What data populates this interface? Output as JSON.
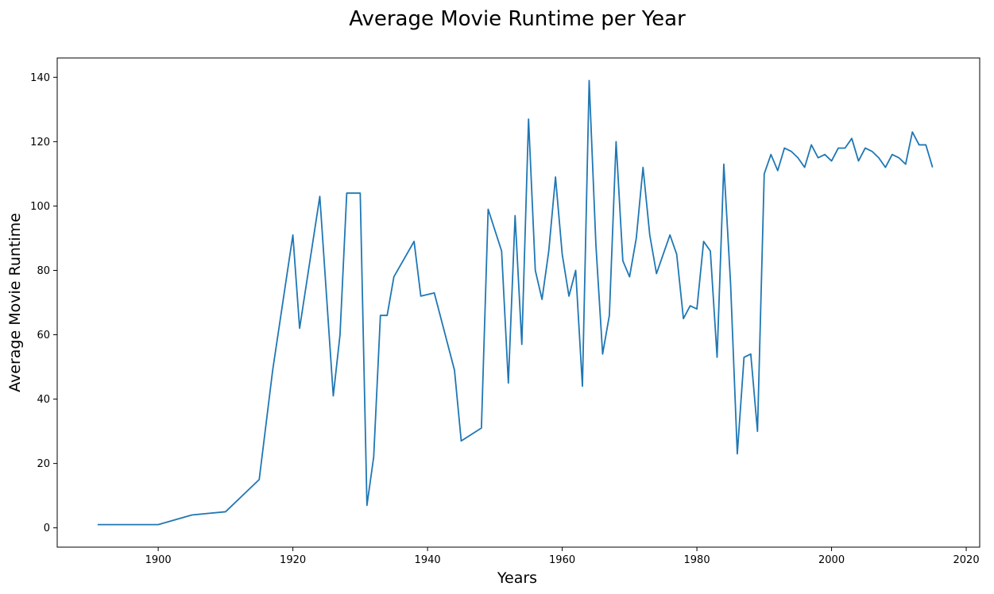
{
  "chart_data": {
    "type": "line",
    "title": "Average Movie Runtime per Year",
    "xlabel": "Years",
    "ylabel": "Average Movie Runtime",
    "xlim": [
      1885,
      2022
    ],
    "ylim": [
      -6,
      146
    ],
    "xticks": [
      1900,
      1920,
      1940,
      1960,
      1980,
      2000,
      2020
    ],
    "yticks": [
      0,
      20,
      40,
      60,
      80,
      100,
      120,
      140
    ],
    "grid": false,
    "legend": "none",
    "colors": {
      "line": "#1f77b4",
      "axis": "#000000"
    },
    "series": [
      {
        "x": [
          1891,
          1900,
          1905,
          1910,
          1915,
          1917,
          1920,
          1921,
          1924,
          1926,
          1927,
          1928,
          1930,
          1931,
          1932,
          1933,
          1934,
          1935,
          1938,
          1939,
          1941,
          1944,
          1945,
          1948,
          1949,
          1951,
          1952,
          1953,
          1954,
          1955,
          1956,
          1957,
          1958,
          1959,
          1960,
          1961,
          1962,
          1963,
          1964,
          1965,
          1966,
          1967,
          1968,
          1969,
          1970,
          1971,
          1972,
          1973,
          1974,
          1975,
          1976,
          1977,
          1978,
          1979,
          1980,
          1981,
          1982,
          1983,
          1984,
          1985,
          1986,
          1987,
          1988,
          1989,
          1990,
          1991,
          1992,
          1993,
          1994,
          1995,
          1996,
          1997,
          1998,
          1999,
          2000,
          2001,
          2002,
          2003,
          2004,
          2005,
          2006,
          2007,
          2008,
          2009,
          2010,
          2011,
          2012,
          2013,
          2014,
          2015
        ],
        "values": [
          1,
          1,
          4,
          5,
          15,
          49,
          91,
          62,
          103,
          41,
          60,
          104,
          104,
          7,
          22,
          66,
          66,
          78,
          89,
          72,
          73,
          49,
          27,
          31,
          99,
          86,
          45,
          97,
          57,
          127,
          80,
          71,
          86,
          109,
          85,
          72,
          80,
          44,
          139,
          88,
          54,
          66,
          120,
          83,
          78,
          90,
          112,
          91,
          79,
          85,
          91,
          85,
          65,
          69,
          68,
          89,
          86,
          53,
          113,
          76,
          23,
          53,
          54,
          30,
          110,
          116,
          111,
          118,
          117,
          115,
          112,
          119,
          115,
          116,
          114,
          118,
          118,
          121,
          114,
          118,
          117,
          115,
          112,
          116,
          115,
          113,
          123,
          119,
          119,
          112
        ]
      }
    ]
  }
}
